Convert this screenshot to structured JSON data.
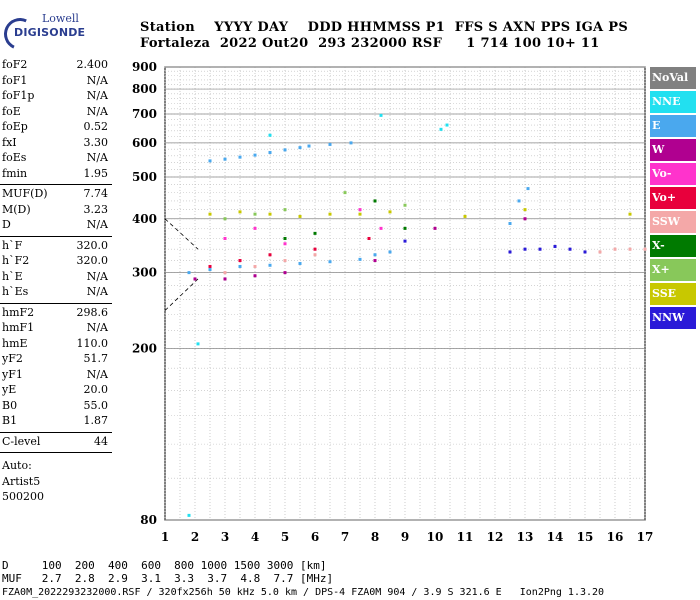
{
  "logo": {
    "line1": "Lowell",
    "line2": "DIGISONDE"
  },
  "header": {
    "line1": "Station    YYYY DAY    DDD HHMMSS P1  FFS S AXN PPS IGA PS",
    "line2": "Fortaleza  2022 Out20  293 232000 RSF     1 714 100 10+ 11"
  },
  "params": {
    "group1": [
      {
        "name": "foF2",
        "value": "2.400"
      },
      {
        "name": "foF1",
        "value": "N/A"
      },
      {
        "name": "foF1p",
        "value": "N/A"
      },
      {
        "name": "foE",
        "value": "N/A"
      },
      {
        "name": "foEp",
        "value": "0.52"
      },
      {
        "name": "fxI",
        "value": "3.30"
      },
      {
        "name": "foEs",
        "value": "N/A"
      },
      {
        "name": "fmin",
        "value": "1.95"
      }
    ],
    "group2": [
      {
        "name": "MUF(D)",
        "value": "7.74"
      },
      {
        "name": "M(D)",
        "value": "3.23"
      },
      {
        "name": "D",
        "value": "N/A"
      }
    ],
    "group3": [
      {
        "name": "h`F",
        "value": "320.0"
      },
      {
        "name": "h`F2",
        "value": "320.0"
      },
      {
        "name": "h`E",
        "value": "N/A"
      },
      {
        "name": "h`Es",
        "value": "N/A"
      }
    ],
    "group4": [
      {
        "name": "hmF2",
        "value": "298.6"
      },
      {
        "name": "hmF1",
        "value": "N/A"
      },
      {
        "name": "hmE",
        "value": "110.0"
      },
      {
        "name": "yF2",
        "value": "51.7"
      },
      {
        "name": "yF1",
        "value": "N/A"
      },
      {
        "name": "yE",
        "value": "20.0"
      },
      {
        "name": "B0",
        "value": "55.0"
      },
      {
        "name": "B1",
        "value": "1.87"
      }
    ],
    "clevel": {
      "name": "C-level",
      "value": "44"
    },
    "auto": [
      "Auto:",
      "Artist5",
      "500200"
    ]
  },
  "legend": [
    {
      "label": "NoVal",
      "color": "#808080"
    },
    {
      "label": "NNE",
      "color": "#22e0f0"
    },
    {
      "label": "E",
      "color": "#4aa8ee"
    },
    {
      "label": "W",
      "color": "#b00090"
    },
    {
      "label": "Vo-",
      "color": "#ff33cc"
    },
    {
      "label": "Vo+",
      "color": "#e8003c"
    },
    {
      "label": "SSW",
      "color": "#f4a8a8"
    },
    {
      "label": "X-",
      "color": "#007a00"
    },
    {
      "label": "X+",
      "color": "#88c85a"
    },
    {
      "label": "SSE",
      "color": "#c8c800"
    },
    {
      "label": "NNW",
      "color": "#2a1ad8"
    }
  ],
  "chart_data": {
    "type": "scatter",
    "x_ticks": [
      "1",
      "2",
      "3",
      "4",
      "5",
      "6",
      "7",
      "8",
      "9",
      "10",
      "11",
      "12",
      "13",
      "14",
      "15",
      "16",
      "17"
    ],
    "y_ticks": [
      "80",
      "200",
      "300",
      "400",
      "500",
      "600",
      "700",
      "800",
      "900"
    ],
    "xlim": [
      1,
      17
    ],
    "ylim": [
      80,
      900
    ],
    "y_scale": "log",
    "grid": true,
    "legend_position": "right",
    "series": [
      {
        "name": "NoVal",
        "points": []
      },
      {
        "name": "NNE",
        "points": [
          [
            10.2,
            645
          ],
          [
            10.4,
            660
          ],
          [
            1.8,
            82
          ],
          [
            2.1,
            205
          ],
          [
            8.2,
            695
          ],
          [
            4.5,
            625
          ]
        ]
      },
      {
        "name": "E",
        "points": [
          [
            2.5,
            545
          ],
          [
            3,
            550
          ],
          [
            3.5,
            556
          ],
          [
            4,
            562
          ],
          [
            4.5,
            570
          ],
          [
            5,
            578
          ],
          [
            5.5,
            585
          ],
          [
            5.8,
            590
          ],
          [
            6.5,
            595
          ],
          [
            7.2,
            600
          ],
          [
            1.8,
            300
          ],
          [
            2.5,
            305
          ],
          [
            3.5,
            310
          ],
          [
            4.5,
            312
          ],
          [
            5.5,
            315
          ],
          [
            6.5,
            318
          ],
          [
            7.5,
            322
          ],
          [
            8,
            330
          ],
          [
            8.5,
            335
          ],
          [
            12.5,
            390
          ],
          [
            12.8,
            440
          ],
          [
            13.1,
            470
          ]
        ]
      },
      {
        "name": "W",
        "points": [
          [
            2,
            290
          ],
          [
            3,
            290
          ],
          [
            4,
            295
          ],
          [
            5,
            300
          ],
          [
            8,
            320
          ],
          [
            10,
            380
          ],
          [
            13,
            400
          ]
        ]
      },
      {
        "name": "Vo-",
        "points": [
          [
            3,
            360
          ],
          [
            4,
            380
          ],
          [
            5,
            350
          ],
          [
            7.5,
            420
          ],
          [
            8.2,
            380
          ]
        ]
      },
      {
        "name": "Vo+",
        "points": [
          [
            2.5,
            310
          ],
          [
            3.5,
            320
          ],
          [
            4.5,
            330
          ],
          [
            6,
            340
          ],
          [
            7.8,
            360
          ]
        ]
      },
      {
        "name": "SSW",
        "points": [
          [
            3,
            300
          ],
          [
            4,
            310
          ],
          [
            5,
            320
          ],
          [
            6,
            330
          ],
          [
            15.5,
            335
          ],
          [
            16,
            340
          ],
          [
            16.5,
            340
          ],
          [
            17,
            340
          ]
        ]
      },
      {
        "name": "X-",
        "points": [
          [
            5,
            360
          ],
          [
            6,
            370
          ],
          [
            8,
            440
          ],
          [
            9,
            380
          ]
        ]
      },
      {
        "name": "X+",
        "points": [
          [
            3,
            400
          ],
          [
            4,
            410
          ],
          [
            5,
            420
          ],
          [
            7,
            460
          ],
          [
            9,
            430
          ]
        ]
      },
      {
        "name": "SSE",
        "points": [
          [
            2.5,
            410
          ],
          [
            3.5,
            415
          ],
          [
            4.5,
            410
          ],
          [
            5.5,
            405
          ],
          [
            6.5,
            410
          ],
          [
            7.5,
            410
          ],
          [
            8.5,
            415
          ],
          [
            11,
            405
          ],
          [
            13,
            420
          ],
          [
            16.5,
            410
          ]
        ]
      },
      {
        "name": "NNW",
        "points": [
          [
            9,
            355
          ],
          [
            12.5,
            335
          ],
          [
            13,
            340
          ],
          [
            13.5,
            340
          ],
          [
            14,
            345
          ],
          [
            14.5,
            340
          ],
          [
            15,
            335
          ]
        ]
      }
    ]
  },
  "bottom": {
    "row1": "D     100  200  400  600  800 1000 1500 3000 [km]",
    "row2": "MUF   2.7  2.8  2.9  3.1  3.3  3.7  4.8  7.7 [MHz]"
  },
  "footer": "FZA0M_2022293232000.RSF / 320fx256h 50 kHz 5.0 km / DPS-4 FZA0M 904 / 3.9 S 321.6 E   Ion2Png 1.3.20"
}
